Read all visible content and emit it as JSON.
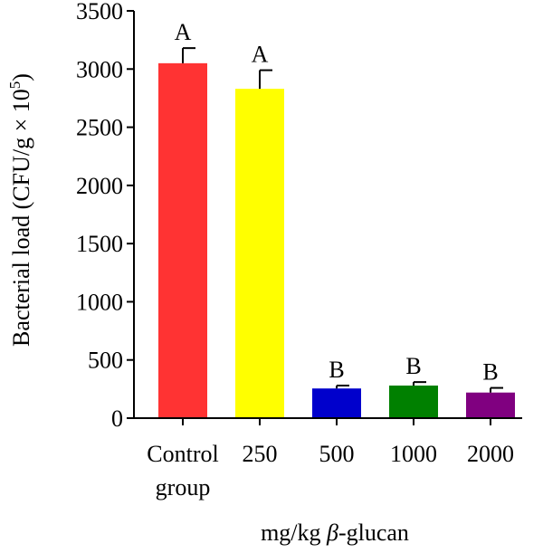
{
  "chart_data": {
    "type": "bar",
    "categories": [
      "Control group",
      "250",
      "500",
      "1000",
      "2000"
    ],
    "category_lines": [
      [
        "Control",
        "group"
      ],
      [
        "250"
      ],
      [
        "500"
      ],
      [
        "1000"
      ],
      [
        "2000"
      ]
    ],
    "values": [
      3050,
      2830,
      255,
      280,
      220
    ],
    "errors": [
      130,
      160,
      25,
      30,
      40
    ],
    "significance": [
      "A",
      "A",
      "B",
      "B",
      "B"
    ],
    "colors": [
      "#ff3333",
      "#ffff00",
      "#0000cc",
      "#008000",
      "#800080"
    ],
    "ylim": [
      0,
      3500
    ],
    "yticks": [
      0,
      500,
      1000,
      1500,
      2000,
      2500,
      3000,
      3500
    ],
    "ylabel": "Bacterial load (CFU/g × 10",
    "ylabel_sup": "5",
    "ylabel_end": ")",
    "xlabel_prefix": "mg/kg ",
    "xlabel_italic": "β",
    "xlabel_suffix": "-glucan",
    "grid": false,
    "legend": "none"
  }
}
